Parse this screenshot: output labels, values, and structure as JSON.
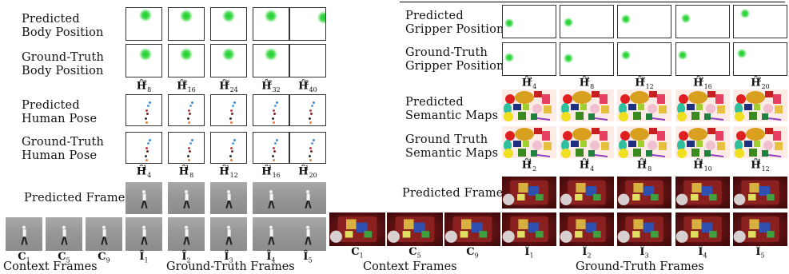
{
  "left": {
    "rows": [
      {
        "label_l1": "Predicted",
        "label_l2": "Body Position"
      },
      {
        "label_l1": "Ground-Truth",
        "label_l2": "Body Position"
      },
      {
        "label_l1": "Predicted",
        "label_l2": "Human Pose"
      },
      {
        "label_l1": "Ground-Truth",
        "label_l2": "Human Pose"
      },
      {
        "label_l1": "Predicted Frames",
        "label_l2": ""
      }
    ],
    "body_captions": [
      {
        "base": "Ĥ",
        "sub": "8",
        "sup": "2"
      },
      {
        "base": "Ĥ",
        "sub": "16",
        "sup": "2"
      },
      {
        "base": "Ĥ",
        "sub": "24",
        "sup": "2"
      },
      {
        "base": "Ĥ",
        "sub": "32",
        "sup": "2"
      },
      {
        "base": "Ĥ",
        "sub": "40",
        "sup": "2"
      }
    ],
    "pose_captions": [
      {
        "base": "Ĥ",
        "sub": "4",
        "sup": "1"
      },
      {
        "base": "Ĥ",
        "sub": "8",
        "sup": "1"
      },
      {
        "base": "Ĥ",
        "sub": "12",
        "sup": "1"
      },
      {
        "base": "Ĥ",
        "sub": "16",
        "sup": "1"
      },
      {
        "base": "Ĥ",
        "sub": "20",
        "sup": "1"
      }
    ],
    "context_captions": [
      {
        "base": "C",
        "sub": "1"
      },
      {
        "base": "C",
        "sub": "5"
      },
      {
        "base": "C",
        "sub": "9"
      }
    ],
    "gt_captions": [
      {
        "base": "Î",
        "sub": "1"
      },
      {
        "base": "Î",
        "sub": "2"
      },
      {
        "base": "Î",
        "sub": "3"
      },
      {
        "base": "Î",
        "sub": "4"
      },
      {
        "base": "Î",
        "sub": "5"
      }
    ],
    "context_frames_label": "Context Frames",
    "gt_frames_label": "Ground-Truth Frames"
  },
  "right": {
    "rows": [
      {
        "label_l1": "Predicted",
        "label_l2": "Gripper Position"
      },
      {
        "label_l1": "Ground-Truth",
        "label_l2": "Gripper Position"
      },
      {
        "label_l1": "Predicted",
        "label_l2": "Semantic Maps"
      },
      {
        "label_l1": "Ground Truth",
        "label_l2": "Semantic Maps"
      },
      {
        "label_l1": "Predicted Frames",
        "label_l2": ""
      }
    ],
    "gripper_captions": [
      {
        "base": "Ĥ",
        "sub": "4",
        "sup": "2"
      },
      {
        "base": "Ĥ",
        "sub": "8",
        "sup": "2"
      },
      {
        "base": "Ĥ",
        "sub": "12",
        "sup": "2"
      },
      {
        "base": "Ĥ",
        "sub": "16",
        "sup": "2"
      },
      {
        "base": "Ĥ",
        "sub": "20",
        "sup": "2"
      }
    ],
    "semantic_captions": [
      {
        "base": "Ĥ",
        "sub": "2",
        "sup": "1"
      },
      {
        "base": "Ĥ",
        "sub": "4",
        "sup": "1"
      },
      {
        "base": "Ĥ",
        "sub": "8",
        "sup": "1"
      },
      {
        "base": "Ĥ",
        "sub": "10",
        "sup": "1"
      },
      {
        "base": "Ĥ",
        "sub": "12",
        "sup": "1"
      }
    ],
    "context_captions": [
      {
        "base": "C",
        "sub": "1"
      },
      {
        "base": "C",
        "sub": "5"
      },
      {
        "base": "C",
        "sub": "9"
      }
    ],
    "gt_captions": [
      {
        "base": "Î",
        "sub": "1"
      },
      {
        "base": "Î",
        "sub": "2"
      },
      {
        "base": "Î",
        "sub": "3"
      },
      {
        "base": "Î",
        "sub": "4"
      },
      {
        "base": "Î",
        "sub": "5"
      }
    ],
    "context_frames_label": "Context Frames",
    "gt_frames_label": "Ground-Truth Frames"
  },
  "colors": {
    "heat_dot": "#22cc33",
    "gripper_dot": "#22cc33",
    "robot_bg": "#6a1414",
    "semantic_bg": "#fdece6"
  }
}
